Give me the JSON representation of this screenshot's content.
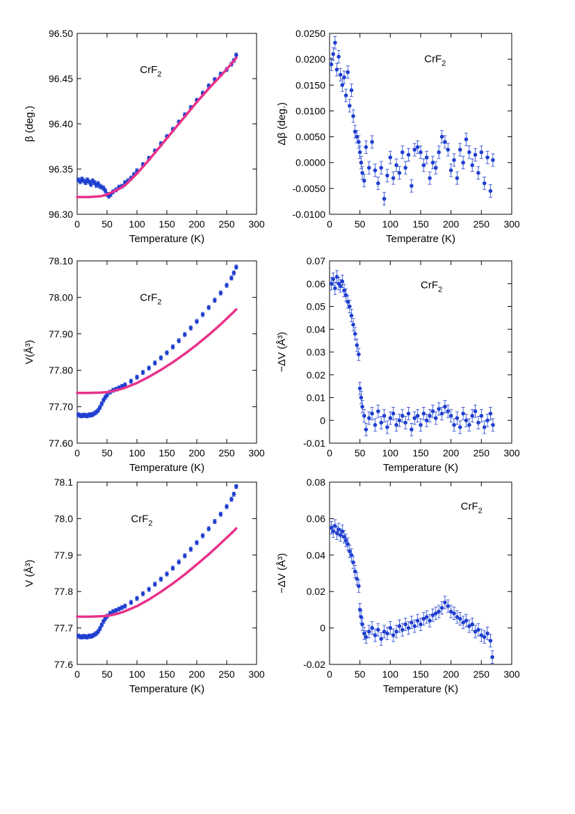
{
  "colors": {
    "data": "#1f3fcf",
    "fit": "#e8318a",
    "axis": "#000000",
    "background": "#ffffff"
  },
  "chart_data": [
    {
      "id": "p1",
      "type": "scatter",
      "title": "",
      "annotation": "CrF",
      "annotation_sub": "2",
      "xlabel": "Temperature (K)",
      "ylabel": "β (deg.)",
      "xlim": [
        0,
        300
      ],
      "ylim": [
        96.3,
        96.5
      ],
      "xticks": [
        0,
        50,
        100,
        150,
        200,
        250,
        300
      ],
      "xtick_labels": [
        "0",
        "50",
        "100",
        "150",
        "200",
        "250",
        "300"
      ],
      "yticks": [
        96.3,
        96.35,
        96.4,
        96.45,
        96.5
      ],
      "ytick_labels": [
        "96.30",
        "96.35",
        "96.40",
        "96.45",
        "96.50"
      ],
      "grid": false,
      "legend": "none",
      "series": [
        {
          "kind": "points",
          "x": [
            2,
            5,
            8,
            11,
            14,
            17,
            20,
            23,
            26,
            29,
            32,
            35,
            38,
            41,
            44,
            47,
            50,
            53,
            56,
            60,
            65,
            70,
            75,
            80,
            85,
            90,
            95,
            100,
            110,
            120,
            130,
            140,
            150,
            160,
            170,
            180,
            190,
            200,
            210,
            220,
            230,
            240,
            250,
            258,
            262,
            266
          ],
          "y": [
            96.338,
            96.336,
            96.339,
            96.337,
            96.335,
            96.338,
            96.336,
            96.333,
            96.337,
            96.335,
            96.332,
            96.334,
            96.331,
            96.33,
            96.329,
            96.326,
            96.322,
            96.32,
            96.322,
            96.325,
            96.327,
            96.33,
            96.331,
            96.335,
            96.337,
            96.34,
            96.344,
            96.348,
            96.355,
            96.362,
            96.37,
            96.378,
            96.386,
            96.394,
            96.402,
            96.41,
            96.418,
            96.426,
            96.434,
            96.442,
            96.449,
            96.455,
            96.46,
            96.466,
            96.47,
            96.476
          ]
        },
        {
          "kind": "fit",
          "x": [
            0,
            20,
            40,
            50,
            60,
            70,
            80,
            100,
            120,
            140,
            160,
            180,
            200,
            220,
            240,
            260,
            266
          ],
          "y": [
            96.319,
            96.319,
            96.32,
            96.322,
            96.325,
            96.328,
            96.332,
            96.345,
            96.36,
            96.376,
            96.392,
            96.408,
            96.424,
            96.439,
            96.453,
            96.468,
            96.473
          ]
        }
      ]
    },
    {
      "id": "p2",
      "type": "scatter",
      "title": "",
      "annotation": "CrF",
      "annotation_sub": "2",
      "xlabel": "Temperatre (K)",
      "ylabel": "Δβ (deg.)",
      "xlim": [
        0,
        300
      ],
      "ylim": [
        -0.01,
        0.025
      ],
      "xticks": [
        0,
        50,
        100,
        150,
        200,
        250,
        300
      ],
      "xtick_labels": [
        "0",
        "50",
        "100",
        "150",
        "200",
        "250",
        "300"
      ],
      "yticks": [
        -0.01,
        -0.005,
        0.0,
        0.005,
        0.01,
        0.015,
        0.02,
        0.025
      ],
      "ytick_labels": [
        "-0.0100",
        "-0.0050",
        "0.0000",
        "0.0050",
        "0.0100",
        "0.0150",
        "0.0200",
        "0.0250"
      ],
      "grid": false,
      "legend": "none",
      "series": [
        {
          "kind": "points",
          "x": [
            3,
            6,
            9,
            12,
            15,
            18,
            21,
            24,
            27,
            30,
            33,
            36,
            39,
            42,
            45,
            48,
            50,
            52,
            54,
            57,
            60,
            65,
            70,
            75,
            80,
            85,
            90,
            95,
            100,
            105,
            110,
            115,
            120,
            125,
            130,
            135,
            140,
            145,
            150,
            155,
            160,
            165,
            170,
            175,
            180,
            185,
            190,
            195,
            200,
            205,
            210,
            215,
            220,
            225,
            230,
            235,
            240,
            245,
            250,
            255,
            260,
            265,
            269
          ],
          "y": [
            0.019,
            0.021,
            0.0232,
            0.018,
            0.0205,
            0.017,
            0.015,
            0.0165,
            0.013,
            0.0175,
            0.011,
            0.014,
            0.009,
            0.006,
            0.005,
            0.004,
            0.002,
            0.0,
            -0.002,
            -0.0035,
            0.003,
            -0.001,
            0.004,
            -0.0015,
            -0.004,
            -0.001,
            -0.007,
            -0.0025,
            0.001,
            -0.003,
            -0.0005,
            -0.002,
            0.002,
            -0.001,
            0.0015,
            -0.0045,
            0.0025,
            0.003,
            0.002,
            -0.0005,
            0.001,
            -0.003,
            0.0,
            -0.001,
            0.002,
            0.005,
            0.004,
            0.0025,
            -0.0015,
            0.0005,
            -0.003,
            0.0025,
            0.0,
            0.0045,
            0.002,
            -0.0005,
            0.0015,
            -0.002,
            0.002,
            -0.004,
            0.001,
            -0.0055,
            0.0005
          ]
        }
      ]
    },
    {
      "id": "p3",
      "type": "scatter",
      "title": "",
      "annotation": "CrF",
      "annotation_sub": "2",
      "xlabel": "Temperature (K)",
      "ylabel": "V(Å³)",
      "xlim": [
        0,
        300
      ],
      "ylim": [
        77.6,
        78.1
      ],
      "xticks": [
        0,
        50,
        100,
        150,
        200,
        250,
        300
      ],
      "xtick_labels": [
        "0",
        "50",
        "100",
        "150",
        "200",
        "250",
        "300"
      ],
      "yticks": [
        77.6,
        77.7,
        77.8,
        77.9,
        78.0,
        78.1
      ],
      "ytick_labels": [
        "77.60",
        "77.70",
        "77.80",
        "77.90",
        "78.00",
        "78.10"
      ],
      "grid": false,
      "legend": "none",
      "series": [
        {
          "kind": "points",
          "x": [
            2,
            5,
            8,
            11,
            14,
            17,
            20,
            23,
            26,
            29,
            32,
            35,
            38,
            41,
            44,
            47,
            50,
            55,
            60,
            65,
            70,
            75,
            80,
            90,
            100,
            110,
            120,
            130,
            140,
            150,
            160,
            170,
            180,
            190,
            200,
            210,
            220,
            230,
            240,
            250,
            258,
            262,
            266
          ],
          "y": [
            77.678,
            77.676,
            77.675,
            77.677,
            77.676,
            77.675,
            77.678,
            77.677,
            77.679,
            77.682,
            77.685,
            77.69,
            77.698,
            77.708,
            77.718,
            77.726,
            77.732,
            77.74,
            77.745,
            77.748,
            77.752,
            77.756,
            77.76,
            77.77,
            77.781,
            77.794,
            77.806,
            77.82,
            77.834,
            77.848,
            77.864,
            77.881,
            77.898,
            77.916,
            77.934,
            77.953,
            77.972,
            77.992,
            78.012,
            78.033,
            78.053,
            78.067,
            78.083
          ]
        },
        {
          "kind": "fit",
          "x": [
            0,
            20,
            40,
            50,
            60,
            70,
            80,
            100,
            120,
            140,
            160,
            180,
            200,
            220,
            240,
            260,
            266
          ],
          "y": [
            77.738,
            77.738,
            77.739,
            77.74,
            77.743,
            77.747,
            77.752,
            77.765,
            77.782,
            77.801,
            77.822,
            77.845,
            77.87,
            77.897,
            77.926,
            77.957,
            77.967
          ]
        }
      ]
    },
    {
      "id": "p4",
      "type": "scatter",
      "title": "",
      "annotation": "CrF",
      "annotation_sub": "2",
      "xlabel": "Temperature (K)",
      "ylabel": "−ΔV (Å³)",
      "xlim": [
        0,
        300
      ],
      "ylim": [
        -0.01,
        0.07
      ],
      "xticks": [
        0,
        50,
        100,
        150,
        200,
        250,
        300
      ],
      "xtick_labels": [
        "0",
        "50",
        "100",
        "150",
        "200",
        "250",
        "300"
      ],
      "yticks": [
        -0.01,
        0,
        0.01,
        0.02,
        0.03,
        0.04,
        0.05,
        0.06,
        0.07
      ],
      "ytick_labels": [
        "-0.01",
        "0",
        "0.01",
        "0.02",
        "0.03",
        "0.04",
        "0.05",
        "0.06",
        "0.07"
      ],
      "grid": false,
      "legend": "none",
      "series": [
        {
          "kind": "points",
          "x": [
            3,
            6,
            9,
            12,
            15,
            18,
            21,
            24,
            27,
            30,
            33,
            36,
            39,
            42,
            45,
            48,
            50,
            52,
            54,
            57,
            60,
            65,
            70,
            75,
            80,
            85,
            90,
            95,
            100,
            105,
            110,
            115,
            120,
            125,
            130,
            135,
            140,
            145,
            150,
            155,
            160,
            165,
            170,
            175,
            180,
            185,
            190,
            195,
            200,
            205,
            210,
            215,
            220,
            225,
            230,
            235,
            240,
            245,
            250,
            255,
            260,
            265,
            269
          ],
          "y": [
            0.06,
            0.062,
            0.058,
            0.063,
            0.06,
            0.059,
            0.061,
            0.057,
            0.055,
            0.052,
            0.05,
            0.046,
            0.042,
            0.038,
            0.033,
            0.029,
            0.014,
            0.01,
            0.006,
            0.002,
            -0.004,
            0.001,
            0.003,
            -0.002,
            0.004,
            -0.001,
            0.002,
            -0.003,
            0.001,
            0.003,
            -0.002,
            0.0,
            0.002,
            -0.001,
            0.003,
            -0.004,
            0.001,
            0.002,
            -0.002,
            0.003,
            0.0,
            0.002,
            0.004,
            0.001,
            0.005,
            0.003,
            0.006,
            0.004,
            0.002,
            -0.002,
            0.001,
            -0.003,
            0.003,
            0.0,
            -0.002,
            0.002,
            0.004,
            -0.001,
            0.002,
            -0.003,
            0.0,
            0.003,
            -0.002
          ]
        }
      ]
    },
    {
      "id": "p5",
      "type": "scatter",
      "title": "",
      "annotation": "CrF",
      "annotation_sub": "2",
      "xlabel": "Temperature (K)",
      "ylabel": "V (Å³)",
      "xlim": [
        0,
        300
      ],
      "ylim": [
        77.6,
        78.1
      ],
      "xticks": [
        0,
        50,
        100,
        150,
        200,
        250,
        300
      ],
      "xtick_labels": [
        "0",
        "50",
        "100",
        "150",
        "200",
        "250",
        "300"
      ],
      "yticks": [
        77.6,
        77.7,
        77.8,
        77.9,
        78.0,
        78.1
      ],
      "ytick_labels": [
        "77.6",
        "77.7",
        "77.8",
        "77.9",
        "78.0",
        "78.1"
      ],
      "grid": false,
      "legend": "none",
      "series": [
        {
          "kind": "points",
          "x": [
            2,
            5,
            8,
            11,
            14,
            17,
            20,
            23,
            26,
            29,
            32,
            35,
            38,
            41,
            44,
            47,
            50,
            55,
            60,
            65,
            70,
            75,
            80,
            90,
            100,
            110,
            120,
            130,
            140,
            150,
            160,
            170,
            180,
            190,
            200,
            210,
            220,
            230,
            240,
            250,
            258,
            262,
            266
          ],
          "y": [
            77.678,
            77.676,
            77.675,
            77.677,
            77.676,
            77.675,
            77.678,
            77.677,
            77.679,
            77.682,
            77.685,
            77.69,
            77.698,
            77.708,
            77.718,
            77.726,
            77.732,
            77.74,
            77.745,
            77.748,
            77.752,
            77.756,
            77.76,
            77.77,
            77.781,
            77.794,
            77.806,
            77.82,
            77.834,
            77.848,
            77.864,
            77.881,
            77.898,
            77.916,
            77.934,
            77.953,
            77.972,
            77.992,
            78.012,
            78.033,
            78.053,
            78.067,
            78.088
          ]
        },
        {
          "kind": "fit",
          "x": [
            0,
            20,
            40,
            50,
            60,
            70,
            80,
            100,
            120,
            140,
            160,
            180,
            200,
            220,
            240,
            260,
            266
          ],
          "y": [
            77.731,
            77.731,
            77.732,
            77.733,
            77.736,
            77.74,
            77.746,
            77.76,
            77.778,
            77.799,
            77.822,
            77.847,
            77.874,
            77.902,
            77.932,
            77.963,
            77.973
          ]
        }
      ]
    },
    {
      "id": "p6",
      "type": "scatter",
      "title": "",
      "annotation": "CrF",
      "annotation_sub": "2",
      "xlabel": "Temperature (K)",
      "ylabel": "−ΔV (Å³)",
      "xlim": [
        0,
        300
      ],
      "ylim": [
        -0.02,
        0.08
      ],
      "xticks": [
        0,
        50,
        100,
        150,
        200,
        250,
        300
      ],
      "xtick_labels": [
        "0",
        "50",
        "100",
        "150",
        "200",
        "250",
        "300"
      ],
      "yticks": [
        -0.02,
        0,
        0.02,
        0.04,
        0.06,
        0.08
      ],
      "ytick_labels": [
        "-0.02",
        "0",
        "0.02",
        "0.04",
        "0.06",
        "0.08"
      ],
      "grid": false,
      "legend": "none",
      "series": [
        {
          "kind": "points",
          "x": [
            3,
            6,
            9,
            12,
            15,
            18,
            21,
            24,
            27,
            30,
            33,
            36,
            39,
            42,
            45,
            48,
            50,
            52,
            54,
            57,
            60,
            65,
            70,
            75,
            80,
            85,
            90,
            95,
            100,
            105,
            110,
            115,
            120,
            125,
            130,
            135,
            140,
            145,
            150,
            155,
            160,
            165,
            170,
            175,
            180,
            185,
            190,
            195,
            200,
            205,
            210,
            215,
            220,
            225,
            230,
            235,
            240,
            245,
            250,
            255,
            260,
            265,
            268
          ],
          "y": [
            0.055,
            0.053,
            0.056,
            0.052,
            0.054,
            0.051,
            0.053,
            0.05,
            0.048,
            0.046,
            0.042,
            0.04,
            0.036,
            0.031,
            0.027,
            0.023,
            0.01,
            0.006,
            0.002,
            -0.003,
            -0.005,
            -0.002,
            0.0,
            -0.004,
            -0.001,
            -0.006,
            -0.002,
            -0.003,
            0.0,
            -0.004,
            -0.002,
            0.001,
            -0.001,
            0.002,
            0.0,
            0.003,
            0.001,
            0.004,
            0.002,
            0.005,
            0.006,
            0.004,
            0.007,
            0.008,
            0.009,
            0.011,
            0.014,
            0.012,
            0.009,
            0.008,
            0.006,
            0.005,
            0.003,
            0.004,
            0.001,
            0.002,
            -0.002,
            -0.001,
            -0.004,
            -0.005,
            -0.003,
            -0.007,
            -0.016
          ]
        }
      ]
    }
  ]
}
